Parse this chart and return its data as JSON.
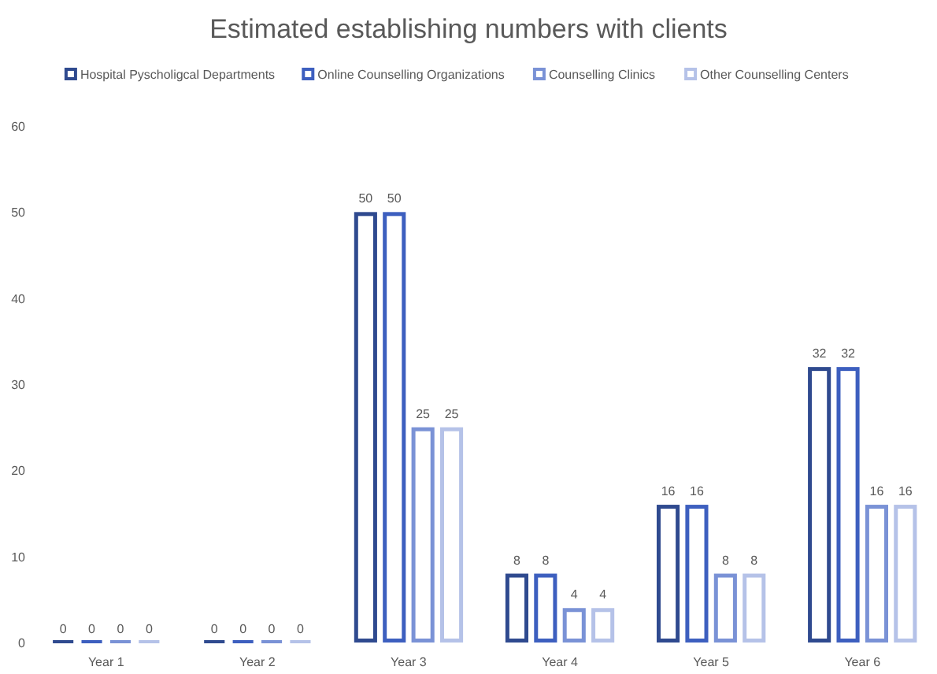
{
  "chart_data": {
    "type": "bar",
    "title": "Estimated establishing numbers with clients",
    "categories": [
      "Year 1",
      "Year 2",
      "Year 3",
      "Year 4",
      "Year 5",
      "Year 6"
    ],
    "series": [
      {
        "name": "Hospital Pyscholigcal Departments",
        "color": "#2f4a8f",
        "values": [
          0,
          0,
          50,
          8,
          16,
          32
        ]
      },
      {
        "name": "Online Counselling Organizations",
        "color": "#3d5fbf",
        "values": [
          0,
          0,
          50,
          8,
          16,
          32
        ]
      },
      {
        "name": "Counselling Clinics",
        "color": "#7a92d6",
        "values": [
          0,
          0,
          25,
          4,
          8,
          16
        ]
      },
      {
        "name": "Other Counselling Centers",
        "color": "#b5c2e8",
        "values": [
          0,
          0,
          25,
          4,
          8,
          16
        ]
      }
    ],
    "ylim": [
      0,
      60
    ],
    "yticks": [
      0,
      10,
      20,
      30,
      40,
      50,
      60
    ],
    "grid": false,
    "legend": "top",
    "data_labels": true
  }
}
